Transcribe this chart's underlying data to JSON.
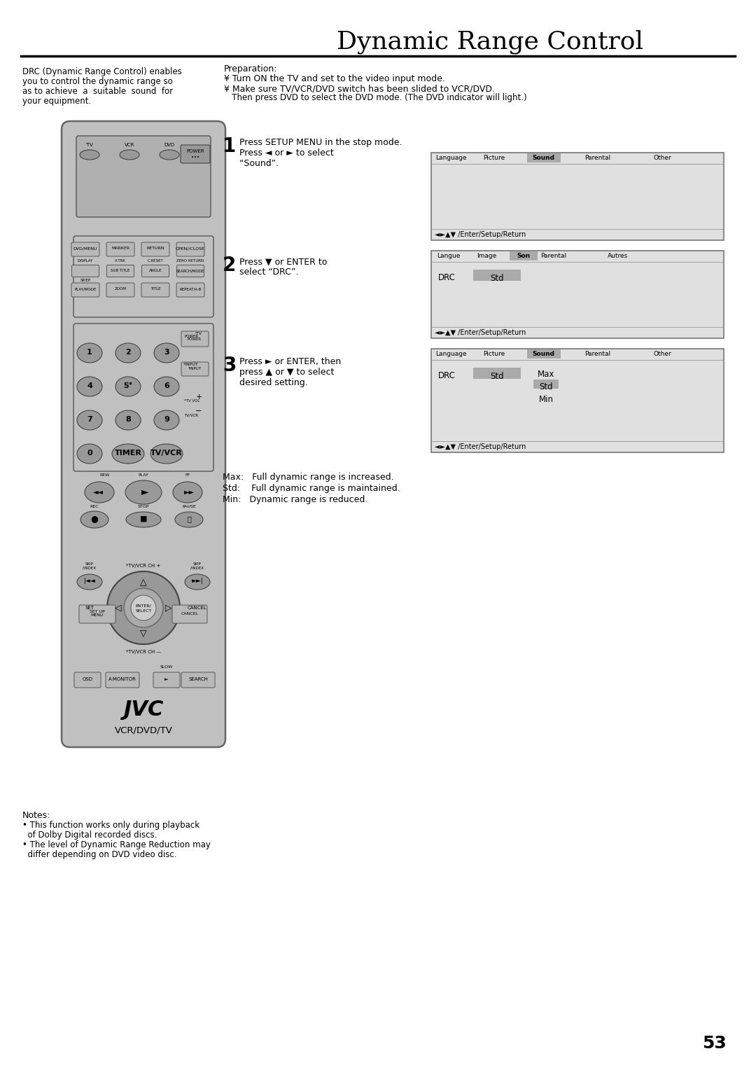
{
  "title": "Dynamic Range Control",
  "bg_color": "#ffffff",
  "title_fontsize": 26,
  "page_number": "53",
  "left_col_text_lines": [
    "DRC (Dynamic Range Control) enables",
    "you to control the dynamic range so",
    "as to achieve  a  suitable  sound  for",
    "your equipment."
  ],
  "prep_title": "Preparation:",
  "prep_lines": [
    "¥ Turn ON the TV and set to the video input mode.",
    "¥ Make sure TV/VCR/DVD switch has been slided to VCR/DVD.",
    "   Then press DVD to select the DVD mode. (The DVD indicator will light.)"
  ],
  "step1_num": "1",
  "step1_text1": "Press SETUP MENU in the stop mode.",
  "step1_text2": "Press ◄ or ► to select",
  "step1_text3": "“Sound”.",
  "step2_num": "2",
  "step2_text1": "Press ▼ or ENTER to",
  "step2_text2": "select “DRC”.",
  "step3_num": "3",
  "step3_text1": "Press ► or ENTER, then",
  "step3_text2": "press ▲ or ▼ to select",
  "step3_text3": "desired setting.",
  "screen1_tabs": [
    "Language",
    "Picture",
    "Sound",
    "Parental",
    "Other"
  ],
  "screen1_active": "Sound",
  "screen1_footer": "◄►▲▼ /Enter/Setup/Return",
  "screen2_tabs": [
    "Langue",
    "Image",
    "Son",
    "Parental",
    "Autres"
  ],
  "screen2_active": "Son",
  "screen2_row_label": "DRC",
  "screen2_row_value": "Std",
  "screen2_footer": "◄►▲▼ /Enter/Setup/Return",
  "screen3_tabs": [
    "Language",
    "Picture",
    "Sound",
    "Parental",
    "Other"
  ],
  "screen3_active": "Sound",
  "screen3_row_label": "DRC",
  "screen3_row_value": "Std",
  "screen3_options": [
    "Max",
    "Std",
    "Min"
  ],
  "screen3_selected": "Std",
  "screen3_footer": "◄►▲▼ /Enter/Setup/Return",
  "legend_lines": [
    "Max:   Full dynamic range is increased.",
    "Std:    Full dynamic range is maintained.",
    "Min:   Dynamic range is reduced."
  ],
  "notes_title": "Notes:",
  "notes_lines": [
    "• This function works only during playback",
    "  of Dolby Digital recorded discs.",
    "• The level of Dynamic Range Reduction may",
    "  differ depending on DVD video disc."
  ],
  "remote_body_color": "#c0c0c0",
  "remote_border_color": "#666666",
  "remote_dark_color": "#999999",
  "remote_btn_color": "#b8b8b8",
  "remote_btn_dark": "#888888"
}
